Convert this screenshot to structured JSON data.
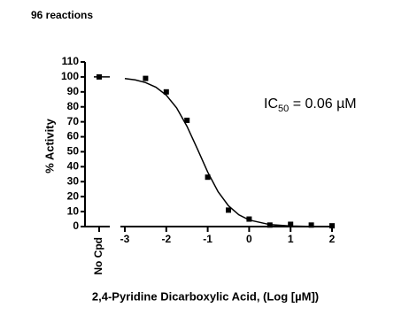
{
  "chart_data": {
    "type": "dose-response",
    "heading": "96 reactions",
    "x_label": "2,4-Pyridine Dicarboxylic Acid, (Log [µM])",
    "y_label": "% Activity",
    "annotation": {
      "text": "IC",
      "sub": "50",
      "rest": " = 0.06 µM"
    },
    "control": {
      "label": "No Cpd",
      "value": 100
    },
    "x": [
      -2.5,
      -2,
      -1.5,
      -1,
      -0.5,
      0,
      0.5,
      1,
      1.5,
      2
    ],
    "values": [
      99,
      90,
      71,
      33,
      11,
      5,
      1,
      1.5,
      1,
      0.5
    ],
    "curve": {
      "x": [
        -3,
        -2.75,
        -2.5,
        -2.25,
        -2,
        -1.75,
        -1.5,
        -1.25,
        -1,
        -0.75,
        -0.5,
        -0.25,
        0,
        0.5,
        1,
        1.5,
        2
      ],
      "values": [
        98.9,
        98.0,
        96.2,
        93.1,
        87.8,
        79.3,
        67.0,
        51.9,
        36.4,
        23.3,
        13.9,
        7.9,
        4.4,
        1.3,
        0.4,
        0.1,
        0.0
      ]
    },
    "color": "#000000",
    "xlim": [
      -3,
      2
    ],
    "xticks": [
      -3,
      -2,
      -1,
      0,
      1,
      2
    ],
    "ylim": [
      0,
      110
    ],
    "yticks": [
      0,
      10,
      20,
      30,
      40,
      50,
      60,
      70,
      80,
      90,
      100,
      110
    ]
  }
}
